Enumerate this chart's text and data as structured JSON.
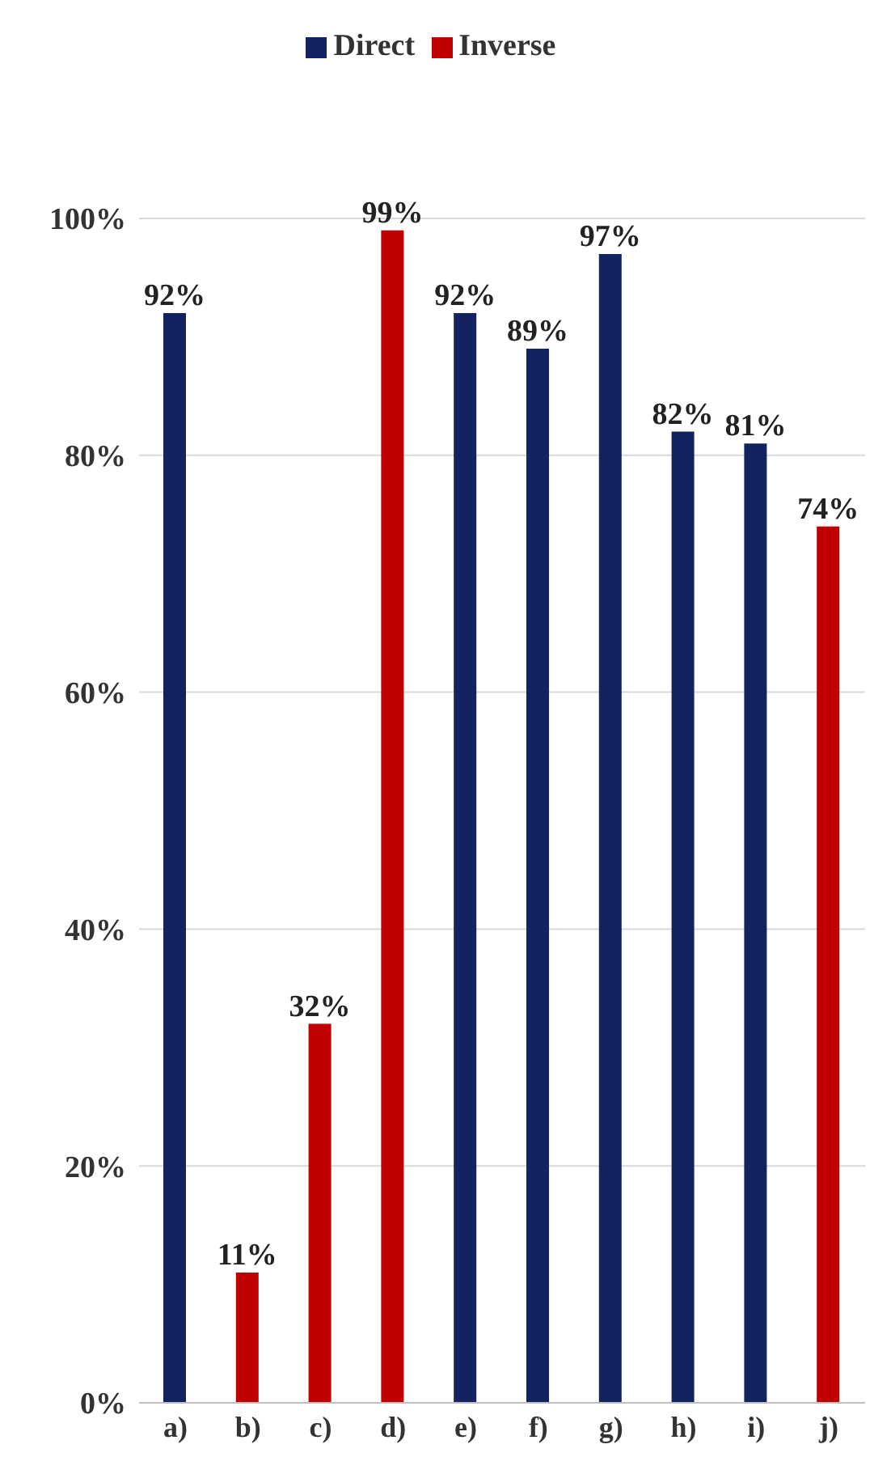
{
  "chart_data": {
    "type": "bar",
    "categories": [
      "a)",
      "b)",
      "c)",
      "d)",
      "e)",
      "f)",
      "g)",
      "h)",
      "i)",
      "j)"
    ],
    "series": [
      {
        "name": "Direct",
        "color": "#12235f",
        "values": [
          92,
          null,
          null,
          null,
          92,
          89,
          97,
          82,
          81,
          null
        ],
        "value_labels": [
          "92%",
          null,
          null,
          null,
          "92%",
          "89%",
          "97%",
          "82%",
          "81%",
          null
        ]
      },
      {
        "name": "Inverse",
        "color": "#c00000",
        "values": [
          null,
          11,
          32,
          99,
          null,
          null,
          null,
          null,
          null,
          74
        ],
        "value_labels": [
          null,
          "11%",
          "32%",
          "99%",
          null,
          null,
          null,
          null,
          null,
          "74%"
        ]
      }
    ],
    "ylim": [
      0,
      100
    ],
    "yticks": [
      {
        "value": 0,
        "label": "0%"
      },
      {
        "value": 20,
        "label": "20%"
      },
      {
        "value": 40,
        "label": "40%"
      },
      {
        "value": 60,
        "label": "60%"
      },
      {
        "value": 80,
        "label": "80%"
      },
      {
        "value": 100,
        "label": "100%"
      }
    ],
    "grid": "y",
    "legend": "top"
  }
}
